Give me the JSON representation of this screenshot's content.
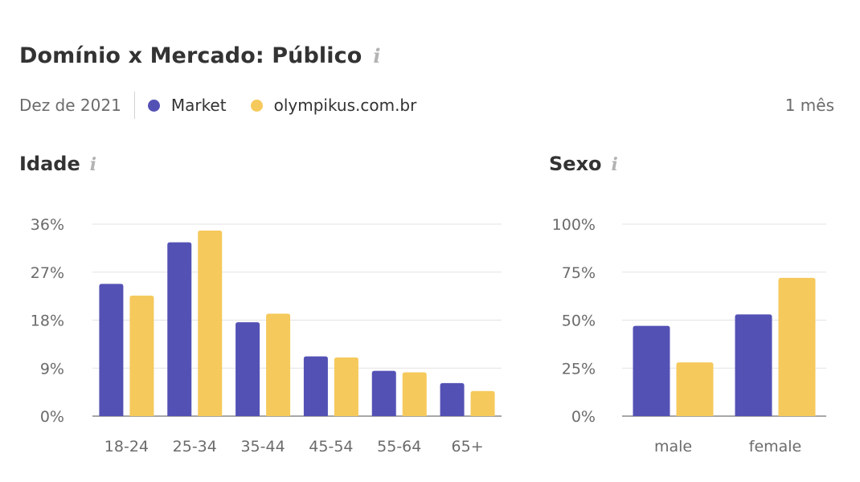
{
  "header": {
    "title": "Domínio x Mercado: Público",
    "info_icon": "i",
    "date": "Dez de 2021",
    "period": "1 mês"
  },
  "legend": [
    {
      "label": "Market",
      "color": "#5451b5"
    },
    {
      "label": "olympikus.com.br",
      "color": "#f5c95b"
    }
  ],
  "sections": {
    "age_title": "Idade",
    "sex_title": "Sexo"
  },
  "chart_data": [
    {
      "type": "bar",
      "title": "Idade",
      "categories": [
        "18-24",
        "25-34",
        "35-44",
        "45-54",
        "55-64",
        "65+"
      ],
      "series": [
        {
          "name": "Market",
          "values": [
            24.8,
            32.6,
            17.6,
            11.2,
            8.5,
            6.2
          ]
        },
        {
          "name": "olympikus.com.br",
          "values": [
            22.6,
            34.8,
            19.2,
            11.0,
            8.2,
            4.7
          ]
        }
      ],
      "ylim": [
        0,
        36
      ],
      "yticks": [
        0,
        9,
        18,
        27,
        36
      ],
      "ytick_labels": [
        "0%",
        "9%",
        "18%",
        "27%",
        "36%"
      ],
      "grid": true,
      "legend": "top"
    },
    {
      "type": "bar",
      "title": "Sexo",
      "categories": [
        "male",
        "female"
      ],
      "series": [
        {
          "name": "Market",
          "values": [
            47,
            53
          ]
        },
        {
          "name": "olympikus.com.br",
          "values": [
            28,
            72
          ]
        }
      ],
      "ylim": [
        0,
        100
      ],
      "yticks": [
        0,
        25,
        50,
        75,
        100
      ],
      "ytick_labels": [
        "0%",
        "25%",
        "50%",
        "75%",
        "100%"
      ],
      "grid": true,
      "legend": "top"
    }
  ]
}
